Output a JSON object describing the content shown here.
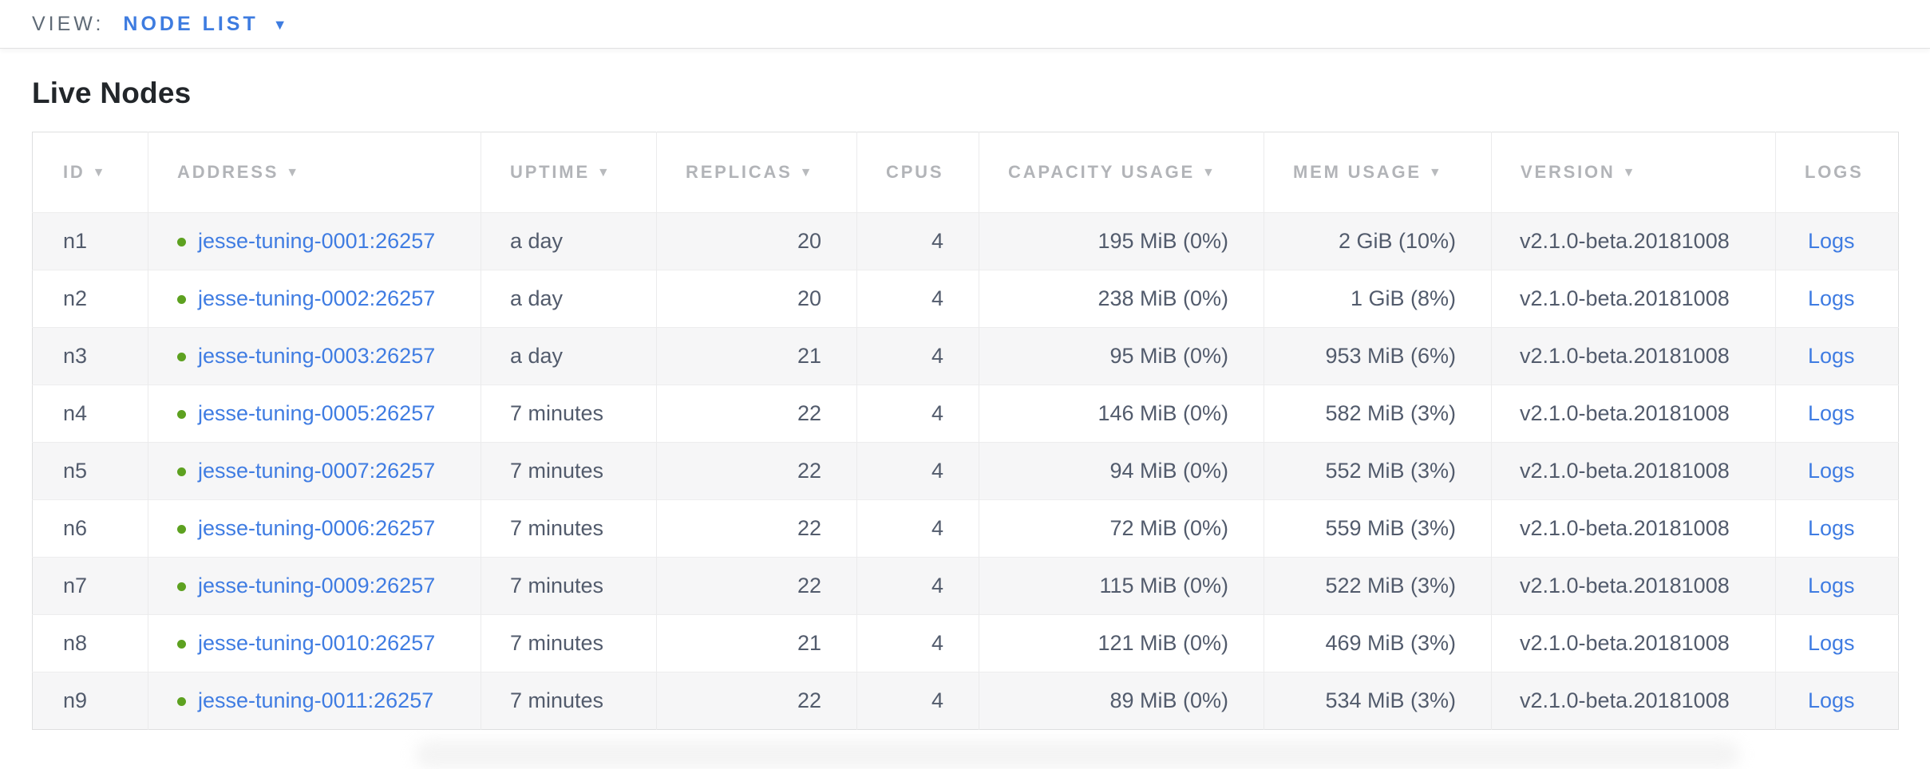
{
  "view_bar": {
    "label": "VIEW:",
    "selected": "NODE LIST",
    "caret_icon": "▼"
  },
  "page": {
    "title": "Live Nodes"
  },
  "colors": {
    "accent_blue": "#3e7ce0",
    "link_blue": "#3f7ce2",
    "live_green": "#5da120",
    "header_gray": "#b2b4b8",
    "cell_text": "#525b6c"
  },
  "table": {
    "sort_icon": "▼",
    "columns": [
      {
        "key": "id",
        "label": "ID",
        "sortable": true
      },
      {
        "key": "address",
        "label": "ADDRESS",
        "sortable": true
      },
      {
        "key": "uptime",
        "label": "UPTIME",
        "sortable": true
      },
      {
        "key": "replicas",
        "label": "REPLICAS",
        "sortable": true
      },
      {
        "key": "cpus",
        "label": "CPUS",
        "sortable": false
      },
      {
        "key": "capacity",
        "label": "CAPACITY USAGE",
        "sortable": true
      },
      {
        "key": "mem",
        "label": "MEM USAGE",
        "sortable": true
      },
      {
        "key": "version",
        "label": "VERSION",
        "sortable": true
      },
      {
        "key": "logs",
        "label": "LOGS",
        "sortable": false
      }
    ],
    "rows": [
      {
        "id": "n1",
        "status": "live",
        "address": "jesse-tuning-0001:26257",
        "uptime": "a day",
        "replicas": "20",
        "cpus": "4",
        "capacity": "195 MiB (0%)",
        "mem": "2 GiB (10%)",
        "version": "v2.1.0-beta.20181008",
        "logs": "Logs"
      },
      {
        "id": "n2",
        "status": "live",
        "address": "jesse-tuning-0002:26257",
        "uptime": "a day",
        "replicas": "20",
        "cpus": "4",
        "capacity": "238 MiB (0%)",
        "mem": "1 GiB (8%)",
        "version": "v2.1.0-beta.20181008",
        "logs": "Logs"
      },
      {
        "id": "n3",
        "status": "live",
        "address": "jesse-tuning-0003:26257",
        "uptime": "a day",
        "replicas": "21",
        "cpus": "4",
        "capacity": "95 MiB (0%)",
        "mem": "953 MiB (6%)",
        "version": "v2.1.0-beta.20181008",
        "logs": "Logs"
      },
      {
        "id": "n4",
        "status": "live",
        "address": "jesse-tuning-0005:26257",
        "uptime": "7 minutes",
        "replicas": "22",
        "cpus": "4",
        "capacity": "146 MiB (0%)",
        "mem": "582 MiB (3%)",
        "version": "v2.1.0-beta.20181008",
        "logs": "Logs"
      },
      {
        "id": "n5",
        "status": "live",
        "address": "jesse-tuning-0007:26257",
        "uptime": "7 minutes",
        "replicas": "22",
        "cpus": "4",
        "capacity": "94 MiB (0%)",
        "mem": "552 MiB (3%)",
        "version": "v2.1.0-beta.20181008",
        "logs": "Logs"
      },
      {
        "id": "n6",
        "status": "live",
        "address": "jesse-tuning-0006:26257",
        "uptime": "7 minutes",
        "replicas": "22",
        "cpus": "4",
        "capacity": "72 MiB (0%)",
        "mem": "559 MiB (3%)",
        "version": "v2.1.0-beta.20181008",
        "logs": "Logs"
      },
      {
        "id": "n7",
        "status": "live",
        "address": "jesse-tuning-0009:26257",
        "uptime": "7 minutes",
        "replicas": "22",
        "cpus": "4",
        "capacity": "115 MiB (0%)",
        "mem": "522 MiB (3%)",
        "version": "v2.1.0-beta.20181008",
        "logs": "Logs"
      },
      {
        "id": "n8",
        "status": "live",
        "address": "jesse-tuning-0010:26257",
        "uptime": "7 minutes",
        "replicas": "21",
        "cpus": "4",
        "capacity": "121 MiB (0%)",
        "mem": "469 MiB (3%)",
        "version": "v2.1.0-beta.20181008",
        "logs": "Logs"
      },
      {
        "id": "n9",
        "status": "live",
        "address": "jesse-tuning-0011:26257",
        "uptime": "7 minutes",
        "replicas": "22",
        "cpus": "4",
        "capacity": "89 MiB (0%)",
        "mem": "534 MiB (3%)",
        "version": "v2.1.0-beta.20181008",
        "logs": "Logs"
      }
    ]
  }
}
